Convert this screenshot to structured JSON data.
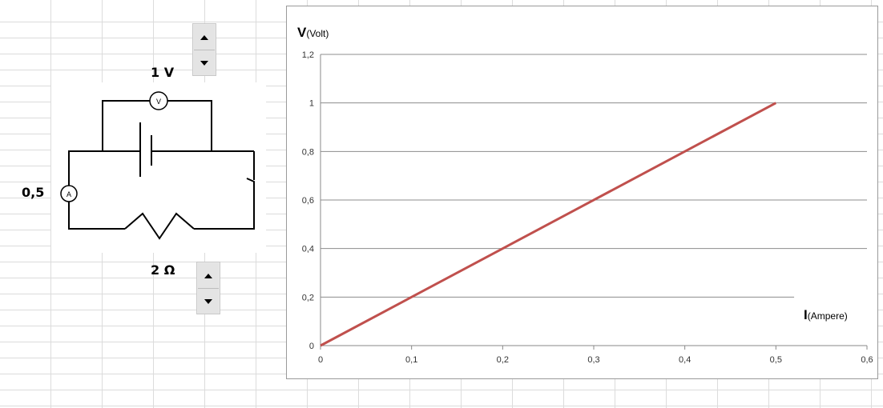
{
  "voltage_readout": "1 V",
  "current_readout": "0,5",
  "resistance_readout": "2 Ω",
  "circuit": {
    "voltmeter_label": "V",
    "ammeter_label": "A"
  },
  "icons": {
    "spinner_up": "triangle-up-icon",
    "spinner_down": "triangle-down-icon"
  },
  "chart_data": {
    "type": "line",
    "ylabel_main": "V",
    "ylabel_unit": "(Volt)",
    "xlabel_main": "I",
    "xlabel_unit": "(Ampere)",
    "x_ticks": [
      "0",
      "0,1",
      "0,2",
      "0,3",
      "0,4",
      "0,5",
      "0,6"
    ],
    "y_ticks": [
      "0",
      "0,2",
      "0,4",
      "0,6",
      "0,8",
      "1",
      "1,2"
    ],
    "xlim": [
      0,
      0.6
    ],
    "ylim": [
      0,
      1.2
    ],
    "grid": "horizontal",
    "series": [
      {
        "color": "#c0504d",
        "x": [
          0,
          0.5
        ],
        "y": [
          0,
          1
        ]
      }
    ]
  }
}
